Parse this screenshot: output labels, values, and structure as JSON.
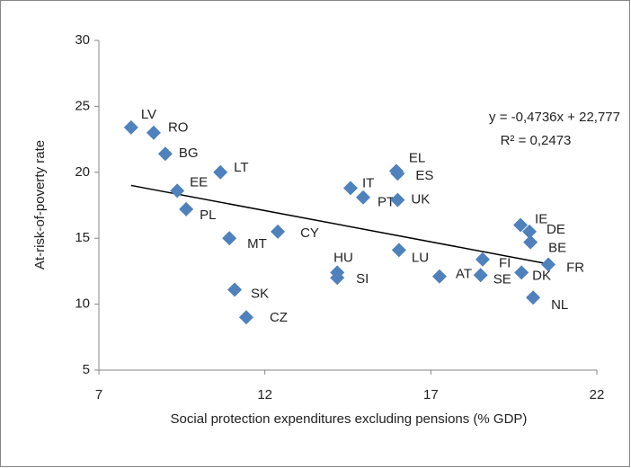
{
  "chart_data": {
    "type": "scatter",
    "x_label": "Social protection expenditures excluding pensions (% GDP)",
    "y_label": "At-risk-of-poverty rate",
    "labels": [
      "LV",
      "RO",
      "BG",
      "LT",
      "EE",
      "PL",
      "MT",
      "CY",
      "SK",
      "CZ",
      "HU",
      "SI",
      "IT",
      "PT",
      "EL",
      "ES",
      "UK",
      "LU",
      "AT",
      "FI",
      "SE",
      "IE",
      "DE",
      "BE",
      "DK",
      "FR",
      "NL"
    ],
    "x": [
      7.97,
      8.65,
      9.0,
      10.66,
      9.36,
      9.63,
      10.93,
      12.39,
      11.09,
      11.44,
      14.18,
      14.18,
      14.58,
      14.96,
      15.96,
      16.0,
      16.0,
      16.04,
      17.26,
      18.56,
      18.5,
      19.7,
      19.97,
      20.0,
      19.73,
      20.54,
      20.08
    ],
    "values": [
      23.4,
      23.0,
      21.4,
      20.0,
      18.6,
      17.2,
      15.0,
      15.5,
      11.1,
      9.0,
      12.4,
      12.0,
      18.8,
      18.1,
      20.1,
      19.9,
      17.9,
      14.1,
      12.1,
      13.4,
      12.2,
      16.0,
      15.5,
      14.7,
      12.4,
      13.0,
      10.5
    ],
    "color": "#4f81bd",
    "xlim": [
      7,
      22
    ],
    "xticks": [
      7,
      12,
      17,
      22
    ],
    "ylim": [
      5,
      30
    ],
    "yticks": [
      5,
      10,
      15,
      20,
      25,
      30
    ],
    "grid": false,
    "trendline": {
      "slope": -0.4736,
      "intercept": 22.777,
      "color": "#000000"
    },
    "annotations": [
      "y = -0,4736x + 22,777",
      "R² = 0,2473"
    ]
  }
}
